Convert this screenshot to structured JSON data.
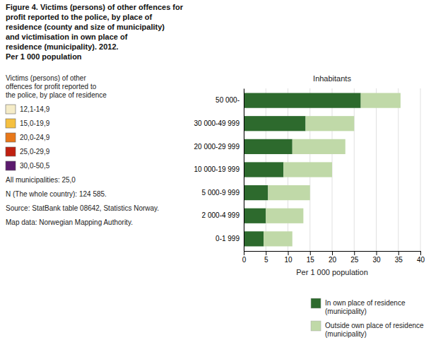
{
  "chart_data": {
    "type": "bar",
    "orientation": "horizontal",
    "stacked": true,
    "title": "Figure 4. Victims (persons) of other offences for\nprofit reported to the police, by place of\nresidence (county and size of municipality)\nand victimisation in own place of\nresidence (municipality). 2012.\nPer 1 000 population",
    "xlabel": "Per 1 000 population",
    "ylabel": "Inhabitants",
    "categories": [
      "0-1 999",
      "2 000-4 999",
      "5 000-9 999",
      "10 000-19 999",
      "20 000-29 999",
      "30 000-49 999",
      "50 000-"
    ],
    "series": [
      {
        "name": "In own place of residence\n(municipality)",
        "color": "#2D6A2D",
        "values": [
          4.5,
          5.0,
          5.5,
          9.0,
          11.0,
          14.0,
          26.5
        ]
      },
      {
        "name": "Outside own place of residence\n(municipality)",
        "color": "#C0D9A8",
        "values": [
          6.5,
          8.5,
          9.5,
          11.0,
          12.0,
          11.0,
          9.0
        ]
      }
    ],
    "xlim": [
      0,
      40
    ],
    "xticks": [
      0,
      5,
      10,
      15,
      20,
      25,
      30,
      35,
      40
    ],
    "grid": true,
    "legend": "lower right",
    "annotations": [
      {
        "text": "Victims (persons) of other\noffences for profit reported to\nthe police, by place of residence"
      },
      {
        "text": "12,1-14,9",
        "color": "#F5ECC8"
      },
      {
        "text": "15,0-19,9",
        "color": "#F5C040"
      },
      {
        "text": "20,0-24,9",
        "color": "#E8781A"
      },
      {
        "text": "25,0-29,9",
        "color": "#C02010"
      },
      {
        "text": "30,0-50,5",
        "color": "#5B1A6E"
      },
      {
        "text": "All municipalities: 25,0"
      },
      {
        "text": "N (The whole country): 124 585."
      },
      {
        "text": "Source: StatBank table 08642, Statistics Norway."
      },
      {
        "text": "Map data: Norwegian Mapping Authority."
      }
    ]
  }
}
